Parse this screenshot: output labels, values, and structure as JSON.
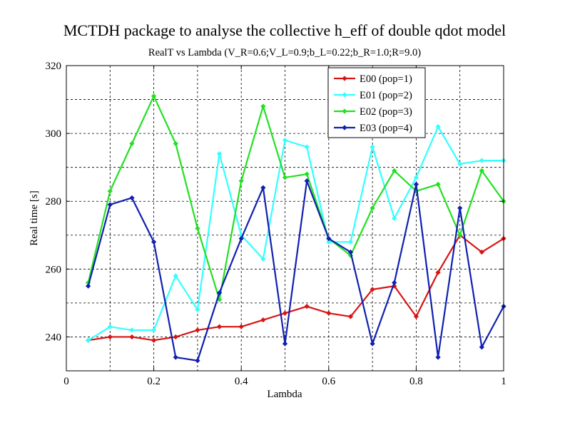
{
  "chart_data": {
    "type": "line",
    "title": "MCTDH package to analyse the collective h_eff of double qdot model",
    "subtitle": "RealT vs Lambda (V_R=0.6;V_L=0.9;b_L=0.22;b_R=1.0;R=9.0)",
    "xlabel": "Lambda",
    "ylabel": "Real time [s]",
    "xlim": [
      0,
      1
    ],
    "ylim": [
      230,
      320
    ],
    "xticks": [
      0,
      0.2,
      0.4,
      0.6,
      0.8,
      1
    ],
    "xtick_labels": [
      "0",
      "0.2",
      "0.4",
      "0.6",
      "0.8",
      "1"
    ],
    "yticks": [
      240,
      260,
      280,
      300,
      320
    ],
    "ytick_labels": [
      "240",
      "260",
      "280",
      "300",
      "320"
    ],
    "grid": true,
    "legend_position": "top-right",
    "x": [
      0.05,
      0.1,
      0.15,
      0.2,
      0.25,
      0.3,
      0.35,
      0.4,
      0.45,
      0.5,
      0.55,
      0.6,
      0.65,
      0.7,
      0.75,
      0.8,
      0.85,
      0.9,
      0.95,
      1.0
    ],
    "series": [
      {
        "name": "E00 (pop=1)",
        "color": "#d81414",
        "values": [
          239,
          240,
          240,
          239,
          240,
          242,
          243,
          243,
          245,
          247,
          249,
          247,
          246,
          254,
          255,
          246,
          259,
          270,
          265,
          269
        ]
      },
      {
        "name": "E01 (pop=2)",
        "color": "#33ffff",
        "values": [
          239,
          243,
          242,
          242,
          258,
          248,
          294,
          270,
          263,
          298,
          296,
          268,
          268,
          296,
          275,
          287,
          302,
          291,
          292,
          292
        ]
      },
      {
        "name": "E02 (pop=3)",
        "color": "#22e022",
        "values": [
          256,
          283,
          297,
          311,
          297,
          272,
          251,
          286,
          308,
          287,
          288,
          269,
          264,
          278,
          289,
          283,
          285,
          270,
          289,
          280
        ]
      },
      {
        "name": "E03 (pop=4)",
        "color": "#1020b0",
        "values": [
          255,
          279,
          281,
          268,
          234,
          233,
          253,
          269,
          284,
          238,
          286,
          269,
          265,
          238,
          256,
          285,
          234,
          278,
          237,
          249
        ]
      }
    ]
  }
}
